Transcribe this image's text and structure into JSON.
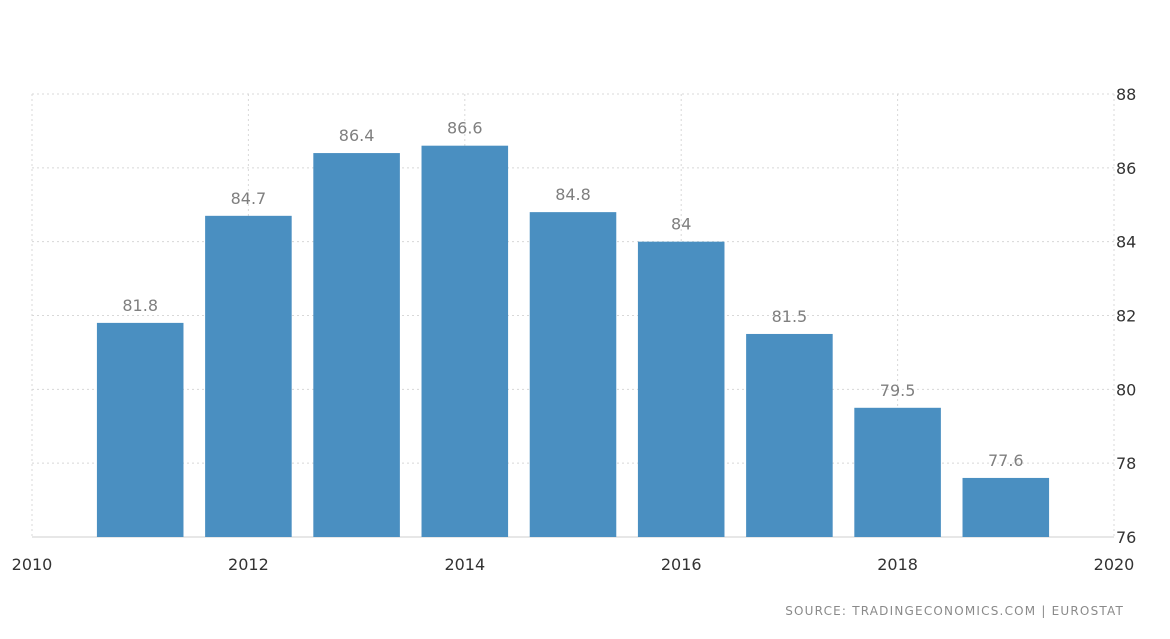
{
  "chart_data": {
    "type": "bar",
    "x": [
      2011,
      2012,
      2013,
      2014,
      2015,
      2016,
      2017,
      2018,
      2019
    ],
    "values": [
      81.8,
      84.7,
      86.4,
      86.6,
      84.8,
      84,
      81.5,
      79.5,
      77.6
    ],
    "data_labels": [
      "81.8",
      "84.7",
      "86.4",
      "86.6",
      "84.8",
      "84",
      "81.5",
      "79.5",
      "77.6"
    ],
    "xticks": [
      "2010",
      "2012",
      "2014",
      "2016",
      "2018",
      "2020"
    ],
    "yticks": [
      "76",
      "78",
      "80",
      "82",
      "84",
      "86",
      "88"
    ],
    "xlim": [
      2010,
      2020
    ],
    "ylim": [
      76,
      88
    ],
    "grid": true,
    "y_axis_side": "right",
    "bar_color": "#4a8fc1"
  },
  "source_note": "SOURCE: TRADINGECONOMICS.COM | EUROSTAT"
}
